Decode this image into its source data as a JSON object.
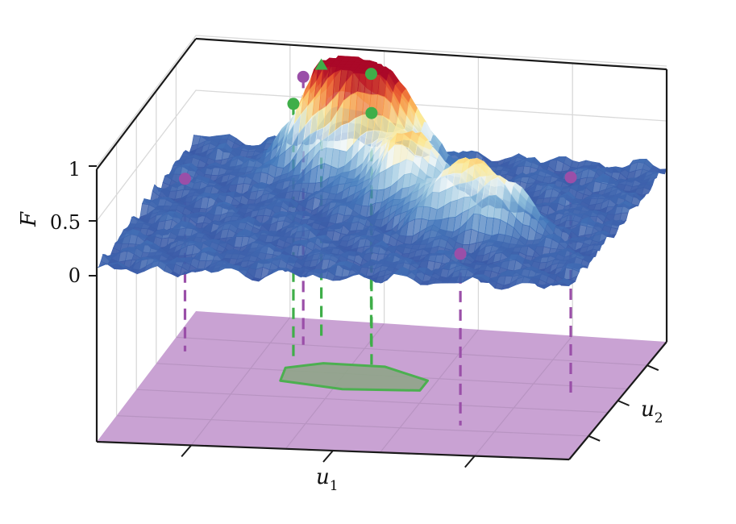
{
  "chart_data": {
    "type": "surface3d",
    "zlabel": "F",
    "xlabel": "u",
    "xlabel_sub": "1",
    "ylabel": "u",
    "ylabel_sub": "2",
    "z_ticks": [
      {
        "value": 0,
        "label": "0"
      },
      {
        "value": 0.5,
        "label": "0.5"
      },
      {
        "value": 1,
        "label": "1"
      }
    ],
    "zlim": [
      0,
      1
    ],
    "xlim": [
      0,
      1
    ],
    "ylim": [
      0,
      1
    ],
    "grid": true,
    "colormap": "red-yellow-white-blue",
    "floor_color": "#c9a2d3",
    "region_color": "#4caf50",
    "peaks": [
      {
        "x": 0.33,
        "y": 0.16,
        "height": 0.95,
        "spread": 0.1
      },
      {
        "x": 0.44,
        "y": 0.22,
        "height": 0.88,
        "spread": 0.11
      },
      {
        "x": 0.54,
        "y": 0.4,
        "height": 0.62,
        "spread": 0.09
      },
      {
        "x": 0.67,
        "y": 0.55,
        "height": 0.55,
        "spread": 0.09
      },
      {
        "x": 0.78,
        "y": 0.6,
        "height": 0.45,
        "spread": 0.07
      }
    ],
    "region_outline": [
      [
        0.27,
        0.38
      ],
      [
        0.34,
        0.33
      ],
      [
        0.47,
        0.33
      ],
      [
        0.58,
        0.42
      ],
      [
        0.58,
        0.5
      ],
      [
        0.42,
        0.52
      ],
      [
        0.28,
        0.48
      ]
    ],
    "markers": [
      {
        "group": "green",
        "shape": "triangle",
        "x": 0.3,
        "y": 0.16,
        "z": 1.0
      },
      {
        "group": "green",
        "shape": "circle",
        "x": 0.41,
        "y": 0.18,
        "z": 0.97
      },
      {
        "group": "green",
        "shape": "circle",
        "x": 0.27,
        "y": 0.3,
        "z": 0.8
      },
      {
        "group": "green",
        "shape": "circle",
        "x": 0.44,
        "y": 0.32,
        "z": 0.78
      },
      {
        "group": "purple",
        "shape": "circle",
        "x": 0.27,
        "y": 0.2,
        "z": 0.93
      },
      {
        "group": "purple",
        "shape": "circle",
        "x": 0.04,
        "y": 0.3,
        "z": 0.06
      },
      {
        "group": "purple",
        "shape": "circle",
        "x": 0.72,
        "y": 0.76,
        "z": 0.05
      },
      {
        "group": "purple",
        "shape": "circle",
        "x": 0.9,
        "y": 0.5,
        "z": 0.5
      }
    ]
  }
}
